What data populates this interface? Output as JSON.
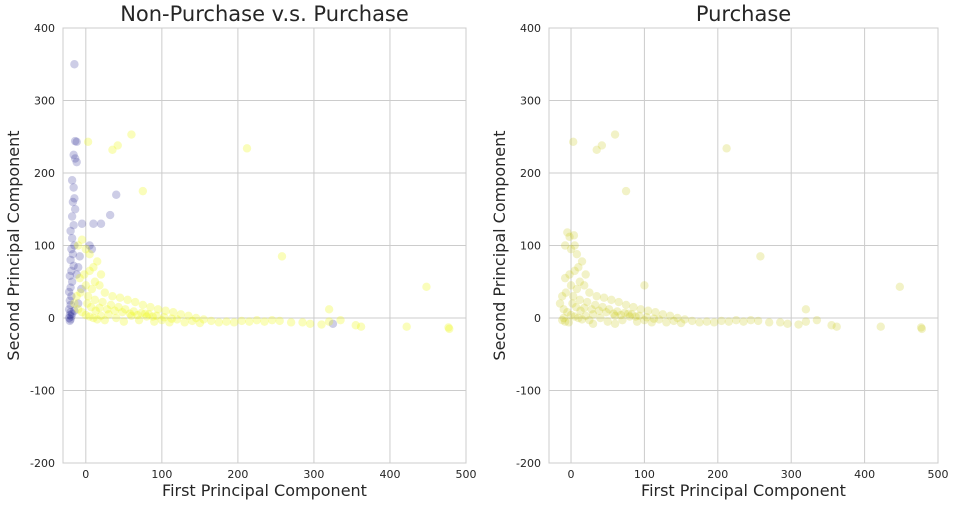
{
  "chart_data": [
    {
      "type": "scatter",
      "title": "Non-Purchase v.s. Purchase",
      "xlabel": "First Principal Component",
      "ylabel": "Second Principal Component",
      "xlim": [
        -30,
        500
      ],
      "ylim": [
        -200,
        400
      ],
      "xticks": [
        0,
        100,
        200,
        300,
        400,
        500
      ],
      "yticks": [
        -200,
        -100,
        0,
        100,
        200,
        300,
        400
      ],
      "grid": true,
      "series": [
        {
          "color": "#1a1a8c",
          "opacity": 0.22,
          "points": [
            [
              -15,
              350
            ],
            [
              -14,
              244
            ],
            [
              -12,
              243
            ],
            [
              -16,
              225
            ],
            [
              -14,
              220
            ],
            [
              -12,
              215
            ],
            [
              -18,
              190
            ],
            [
              -16,
              180
            ],
            [
              -15,
              165
            ],
            [
              -17,
              160
            ],
            [
              -14,
              150
            ],
            [
              -18,
              140
            ],
            [
              -16,
              128
            ],
            [
              -20,
              120
            ],
            [
              -18,
              110
            ],
            [
              -15,
              100
            ],
            [
              -19,
              95
            ],
            [
              -17,
              88
            ],
            [
              -20,
              80
            ],
            [
              -16,
              72
            ],
            [
              -19,
              65
            ],
            [
              -21,
              58
            ],
            [
              -18,
              50
            ],
            [
              -20,
              42
            ],
            [
              -22,
              36
            ],
            [
              -19,
              30
            ],
            [
              -21,
              24
            ],
            [
              -20,
              18
            ],
            [
              -22,
              12
            ],
            [
              -20,
              8
            ],
            [
              -21,
              4
            ],
            [
              -22,
              0
            ],
            [
              -20,
              -2
            ],
            [
              -19,
              2
            ],
            [
              -18,
              6
            ],
            [
              -21,
              -4
            ],
            [
              -10,
              70
            ],
            [
              -8,
              85
            ],
            [
              -5,
              130
            ],
            [
              5,
              100
            ],
            [
              8,
              95
            ],
            [
              10,
              130
            ],
            [
              20,
              130
            ],
            [
              32,
              142
            ],
            [
              40,
              170
            ],
            [
              325,
              -8
            ],
            [
              -6,
              40
            ],
            [
              -12,
              60
            ],
            [
              -10,
              20
            ],
            [
              -15,
              10
            ]
          ]
        },
        {
          "color": "#eef70a",
          "opacity": 0.28,
          "points": [
            [
              60,
              253
            ],
            [
              3,
              243
            ],
            [
              35,
              232
            ],
            [
              42,
              238
            ],
            [
              212,
              234
            ],
            [
              75,
              175
            ],
            [
              -10,
              100
            ],
            [
              -5,
              108
            ],
            [
              0,
              95
            ],
            [
              5,
              88
            ],
            [
              10,
              70
            ],
            [
              15,
              78
            ],
            [
              20,
              60
            ],
            [
              -8,
              55
            ],
            [
              0,
              45
            ],
            [
              8,
              40
            ],
            [
              25,
              35
            ],
            [
              35,
              30
            ],
            [
              45,
              28
            ],
            [
              55,
              25
            ],
            [
              65,
              22
            ],
            [
              75,
              18
            ],
            [
              85,
              15
            ],
            [
              95,
              12
            ],
            [
              105,
              10
            ],
            [
              115,
              8
            ],
            [
              125,
              5
            ],
            [
              135,
              3
            ],
            [
              145,
              0
            ],
            [
              155,
              -2
            ],
            [
              165,
              -4
            ],
            [
              175,
              -6
            ],
            [
              185,
              -5
            ],
            [
              195,
              -6
            ],
            [
              205,
              -4
            ],
            [
              215,
              -5
            ],
            [
              225,
              -3
            ],
            [
              235,
              -5
            ],
            [
              245,
              -3
            ],
            [
              255,
              -4
            ],
            [
              270,
              -6
            ],
            [
              285,
              -6
            ],
            [
              295,
              -8
            ],
            [
              310,
              -9
            ],
            [
              320,
              -5
            ],
            [
              335,
              -3
            ],
            [
              355,
              -10
            ],
            [
              362,
              -12
            ],
            [
              422,
              -12
            ],
            [
              448,
              43
            ],
            [
              477,
              -13
            ],
            [
              478,
              -15
            ],
            [
              258,
              85
            ],
            [
              320,
              12
            ],
            [
              -15,
              20
            ],
            [
              -10,
              12
            ],
            [
              -5,
              8
            ],
            [
              0,
              4
            ],
            [
              5,
              2
            ],
            [
              10,
              0
            ],
            [
              15,
              -2
            ],
            [
              20,
              3
            ],
            [
              25,
              -3
            ],
            [
              30,
              5
            ],
            [
              40,
              0
            ],
            [
              50,
              -5
            ],
            [
              60,
              3
            ],
            [
              70,
              -3
            ],
            [
              80,
              2
            ],
            [
              90,
              -5
            ],
            [
              100,
              -3
            ],
            [
              110,
              -6
            ],
            [
              120,
              -2
            ],
            [
              130,
              -6
            ],
            [
              140,
              -4
            ],
            [
              150,
              -7
            ],
            [
              2,
              20
            ],
            [
              12,
              25
            ],
            [
              18,
              14
            ],
            [
              28,
              12
            ],
            [
              38,
              10
            ],
            [
              48,
              8
            ],
            [
              58,
              6
            ],
            [
              68,
              4
            ],
            [
              78,
              6
            ],
            [
              88,
              2
            ],
            [
              -12,
              30
            ],
            [
              -7,
              35
            ],
            [
              3,
              30
            ],
            [
              7,
              15
            ],
            [
              13,
              10
            ],
            [
              22,
              22
            ],
            [
              33,
              18
            ],
            [
              43,
              15
            ],
            [
              52,
              12
            ],
            [
              63,
              9
            ],
            [
              73,
              7
            ],
            [
              83,
              5
            ],
            [
              93,
              3
            ],
            [
              103,
              1
            ],
            [
              113,
              -1
            ],
            [
              -2,
              60
            ],
            [
              5,
              65
            ],
            [
              12,
              50
            ],
            [
              18,
              45
            ]
          ]
        }
      ]
    },
    {
      "type": "scatter",
      "title": "Purchase",
      "xlabel": "First Principal Component",
      "ylabel": "Second Principal Component",
      "xlim": [
        -30,
        500
      ],
      "ylim": [
        -200,
        400
      ],
      "xticks": [
        0,
        100,
        200,
        300,
        400,
        500
      ],
      "yticks": [
        -200,
        -100,
        0,
        100,
        200,
        300,
        400
      ],
      "grid": true,
      "series": [
        {
          "color": "#c4c400",
          "opacity": 0.22,
          "points": [
            [
              60,
              253
            ],
            [
              3,
              243
            ],
            [
              35,
              232
            ],
            [
              42,
              238
            ],
            [
              212,
              234
            ],
            [
              75,
              175
            ],
            [
              -5,
              118
            ],
            [
              -2,
              112
            ],
            [
              4,
              114
            ],
            [
              -8,
              100
            ],
            [
              0,
              95
            ],
            [
              5,
              100
            ],
            [
              8,
              88
            ],
            [
              10,
              70
            ],
            [
              15,
              78
            ],
            [
              20,
              60
            ],
            [
              -8,
              55
            ],
            [
              0,
              45
            ],
            [
              8,
              40
            ],
            [
              25,
              35
            ],
            [
              35,
              30
            ],
            [
              45,
              28
            ],
            [
              55,
              25
            ],
            [
              65,
              22
            ],
            [
              75,
              18
            ],
            [
              85,
              15
            ],
            [
              95,
              12
            ],
            [
              105,
              10
            ],
            [
              115,
              8
            ],
            [
              125,
              5
            ],
            [
              135,
              3
            ],
            [
              145,
              0
            ],
            [
              155,
              -2
            ],
            [
              165,
              -4
            ],
            [
              175,
              -6
            ],
            [
              185,
              -5
            ],
            [
              195,
              -6
            ],
            [
              205,
              -4
            ],
            [
              215,
              -5
            ],
            [
              225,
              -3
            ],
            [
              235,
              -5
            ],
            [
              245,
              -3
            ],
            [
              255,
              -4
            ],
            [
              270,
              -6
            ],
            [
              285,
              -6
            ],
            [
              295,
              -8
            ],
            [
              310,
              -9
            ],
            [
              320,
              -5
            ],
            [
              335,
              -3
            ],
            [
              355,
              -10
            ],
            [
              362,
              -12
            ],
            [
              422,
              -12
            ],
            [
              448,
              43
            ],
            [
              477,
              -13
            ],
            [
              478,
              -15
            ],
            [
              258,
              85
            ],
            [
              320,
              12
            ],
            [
              -15,
              20
            ],
            [
              -10,
              12
            ],
            [
              -5,
              8
            ],
            [
              0,
              4
            ],
            [
              5,
              2
            ],
            [
              10,
              0
            ],
            [
              15,
              -2
            ],
            [
              20,
              3
            ],
            [
              25,
              -3
            ],
            [
              30,
              5
            ],
            [
              40,
              0
            ],
            [
              50,
              -5
            ],
            [
              60,
              3
            ],
            [
              70,
              -3
            ],
            [
              80,
              2
            ],
            [
              90,
              -5
            ],
            [
              100,
              -3
            ],
            [
              110,
              -6
            ],
            [
              120,
              -2
            ],
            [
              130,
              -6
            ],
            [
              140,
              -4
            ],
            [
              150,
              -7
            ],
            [
              2,
              20
            ],
            [
              12,
              25
            ],
            [
              18,
              14
            ],
            [
              28,
              12
            ],
            [
              38,
              10
            ],
            [
              48,
              8
            ],
            [
              58,
              6
            ],
            [
              68,
              4
            ],
            [
              78,
              6
            ],
            [
              88,
              2
            ],
            [
              -12,
              30
            ],
            [
              -7,
              35
            ],
            [
              3,
              30
            ],
            [
              7,
              15
            ],
            [
              13,
              10
            ],
            [
              22,
              22
            ],
            [
              33,
              18
            ],
            [
              43,
              15
            ],
            [
              52,
              12
            ],
            [
              63,
              9
            ],
            [
              73,
              7
            ],
            [
              83,
              5
            ],
            [
              93,
              3
            ],
            [
              103,
              1
            ],
            [
              113,
              -1
            ],
            [
              -2,
              60
            ],
            [
              5,
              65
            ],
            [
              12,
              50
            ],
            [
              18,
              45
            ],
            [
              100,
              45
            ],
            [
              -10,
              0
            ],
            [
              -8,
              -5
            ],
            [
              -12,
              -3
            ],
            [
              -3,
              -6
            ],
            [
              30,
              -8
            ],
            [
              60,
              -8
            ]
          ]
        }
      ]
    }
  ]
}
